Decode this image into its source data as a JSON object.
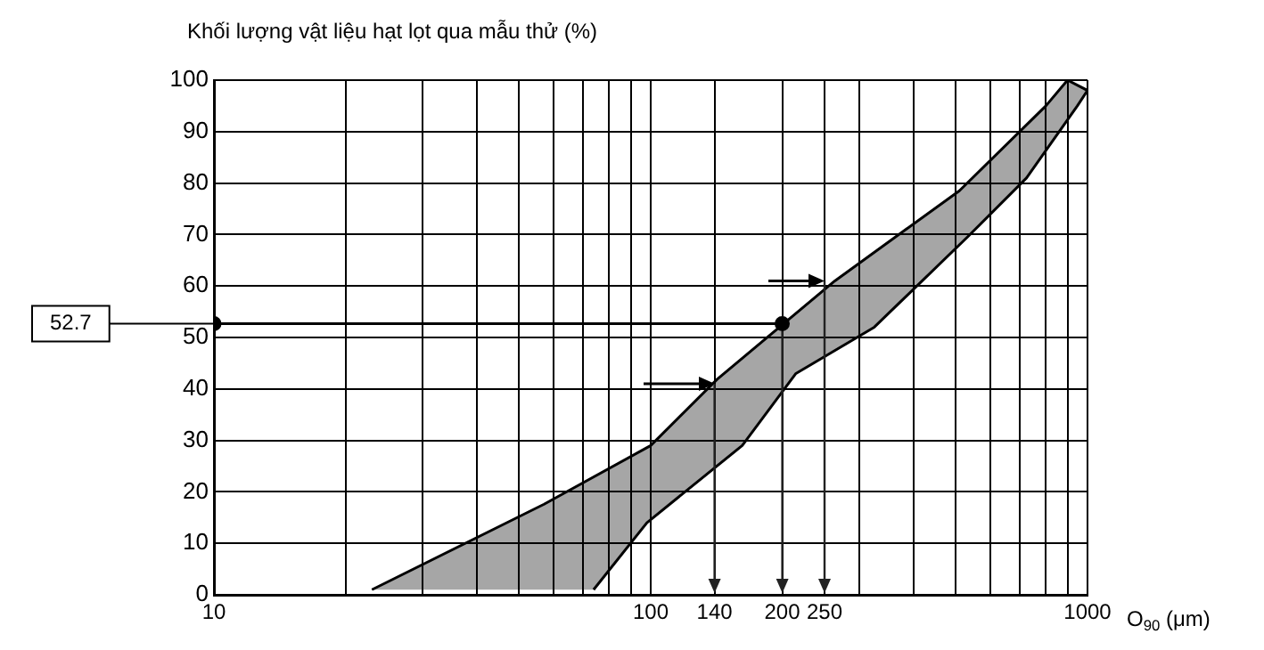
{
  "chart_data": {
    "type": "line",
    "ylabel": "Khối lượng vật liệu hạt lọt qua mẫu thử (%)",
    "xlabel": "O$_{90}$ (μm)",
    "log": "x",
    "xlim": [
      10,
      1000
    ],
    "ylim": [
      0,
      100
    ],
    "xticks": [
      10,
      {
        "value": 20,
        "label": null
      },
      {
        "value": 30,
        "label": null
      },
      {
        "value": 40,
        "label": null
      },
      {
        "value": 50,
        "label": null
      },
      {
        "value": 60,
        "label": null
      },
      {
        "value": 70,
        "label": null
      },
      {
        "value": 80,
        "label": null
      },
      {
        "value": 90,
        "label": null
      },
      100,
      140,
      200,
      250,
      {
        "value": 300,
        "label": null
      },
      {
        "value": 400,
        "label": null
      },
      {
        "value": 500,
        "label": null
      },
      {
        "value": 600,
        "label": null
      },
      {
        "value": 700,
        "label": null
      },
      {
        "value": 800,
        "label": null
      },
      {
        "value": 900,
        "label": null
      },
      1000
    ],
    "yticks": [
      0,
      10,
      20,
      30,
      40,
      50,
      60,
      70,
      80,
      90,
      100
    ],
    "grid": true,
    "legend": false,
    "annotations": [
      "52.7"
    ],
    "series": [
      {
        "type": "area",
        "color": "#000000",
        "marker": "none",
        "x": [
          23,
          57,
          100,
          142,
          264,
          509,
          803,
          900,
          1000,
          948,
          725,
          531,
          325,
          215,
          162,
          98,
          74
        ],
        "values": [
          1,
          17.6,
          29,
          41.9,
          61,
          78.5,
          95,
          100,
          98,
          95,
          81,
          69.5,
          52,
          43,
          29,
          14,
          1
        ]
      },
      {
        "type": "line",
        "color": "#000000",
        "marker": "circle",
        "x": [
          10,
          200
        ],
        "values": [
          52.7,
          52.7
        ]
      }
    ]
  }
}
